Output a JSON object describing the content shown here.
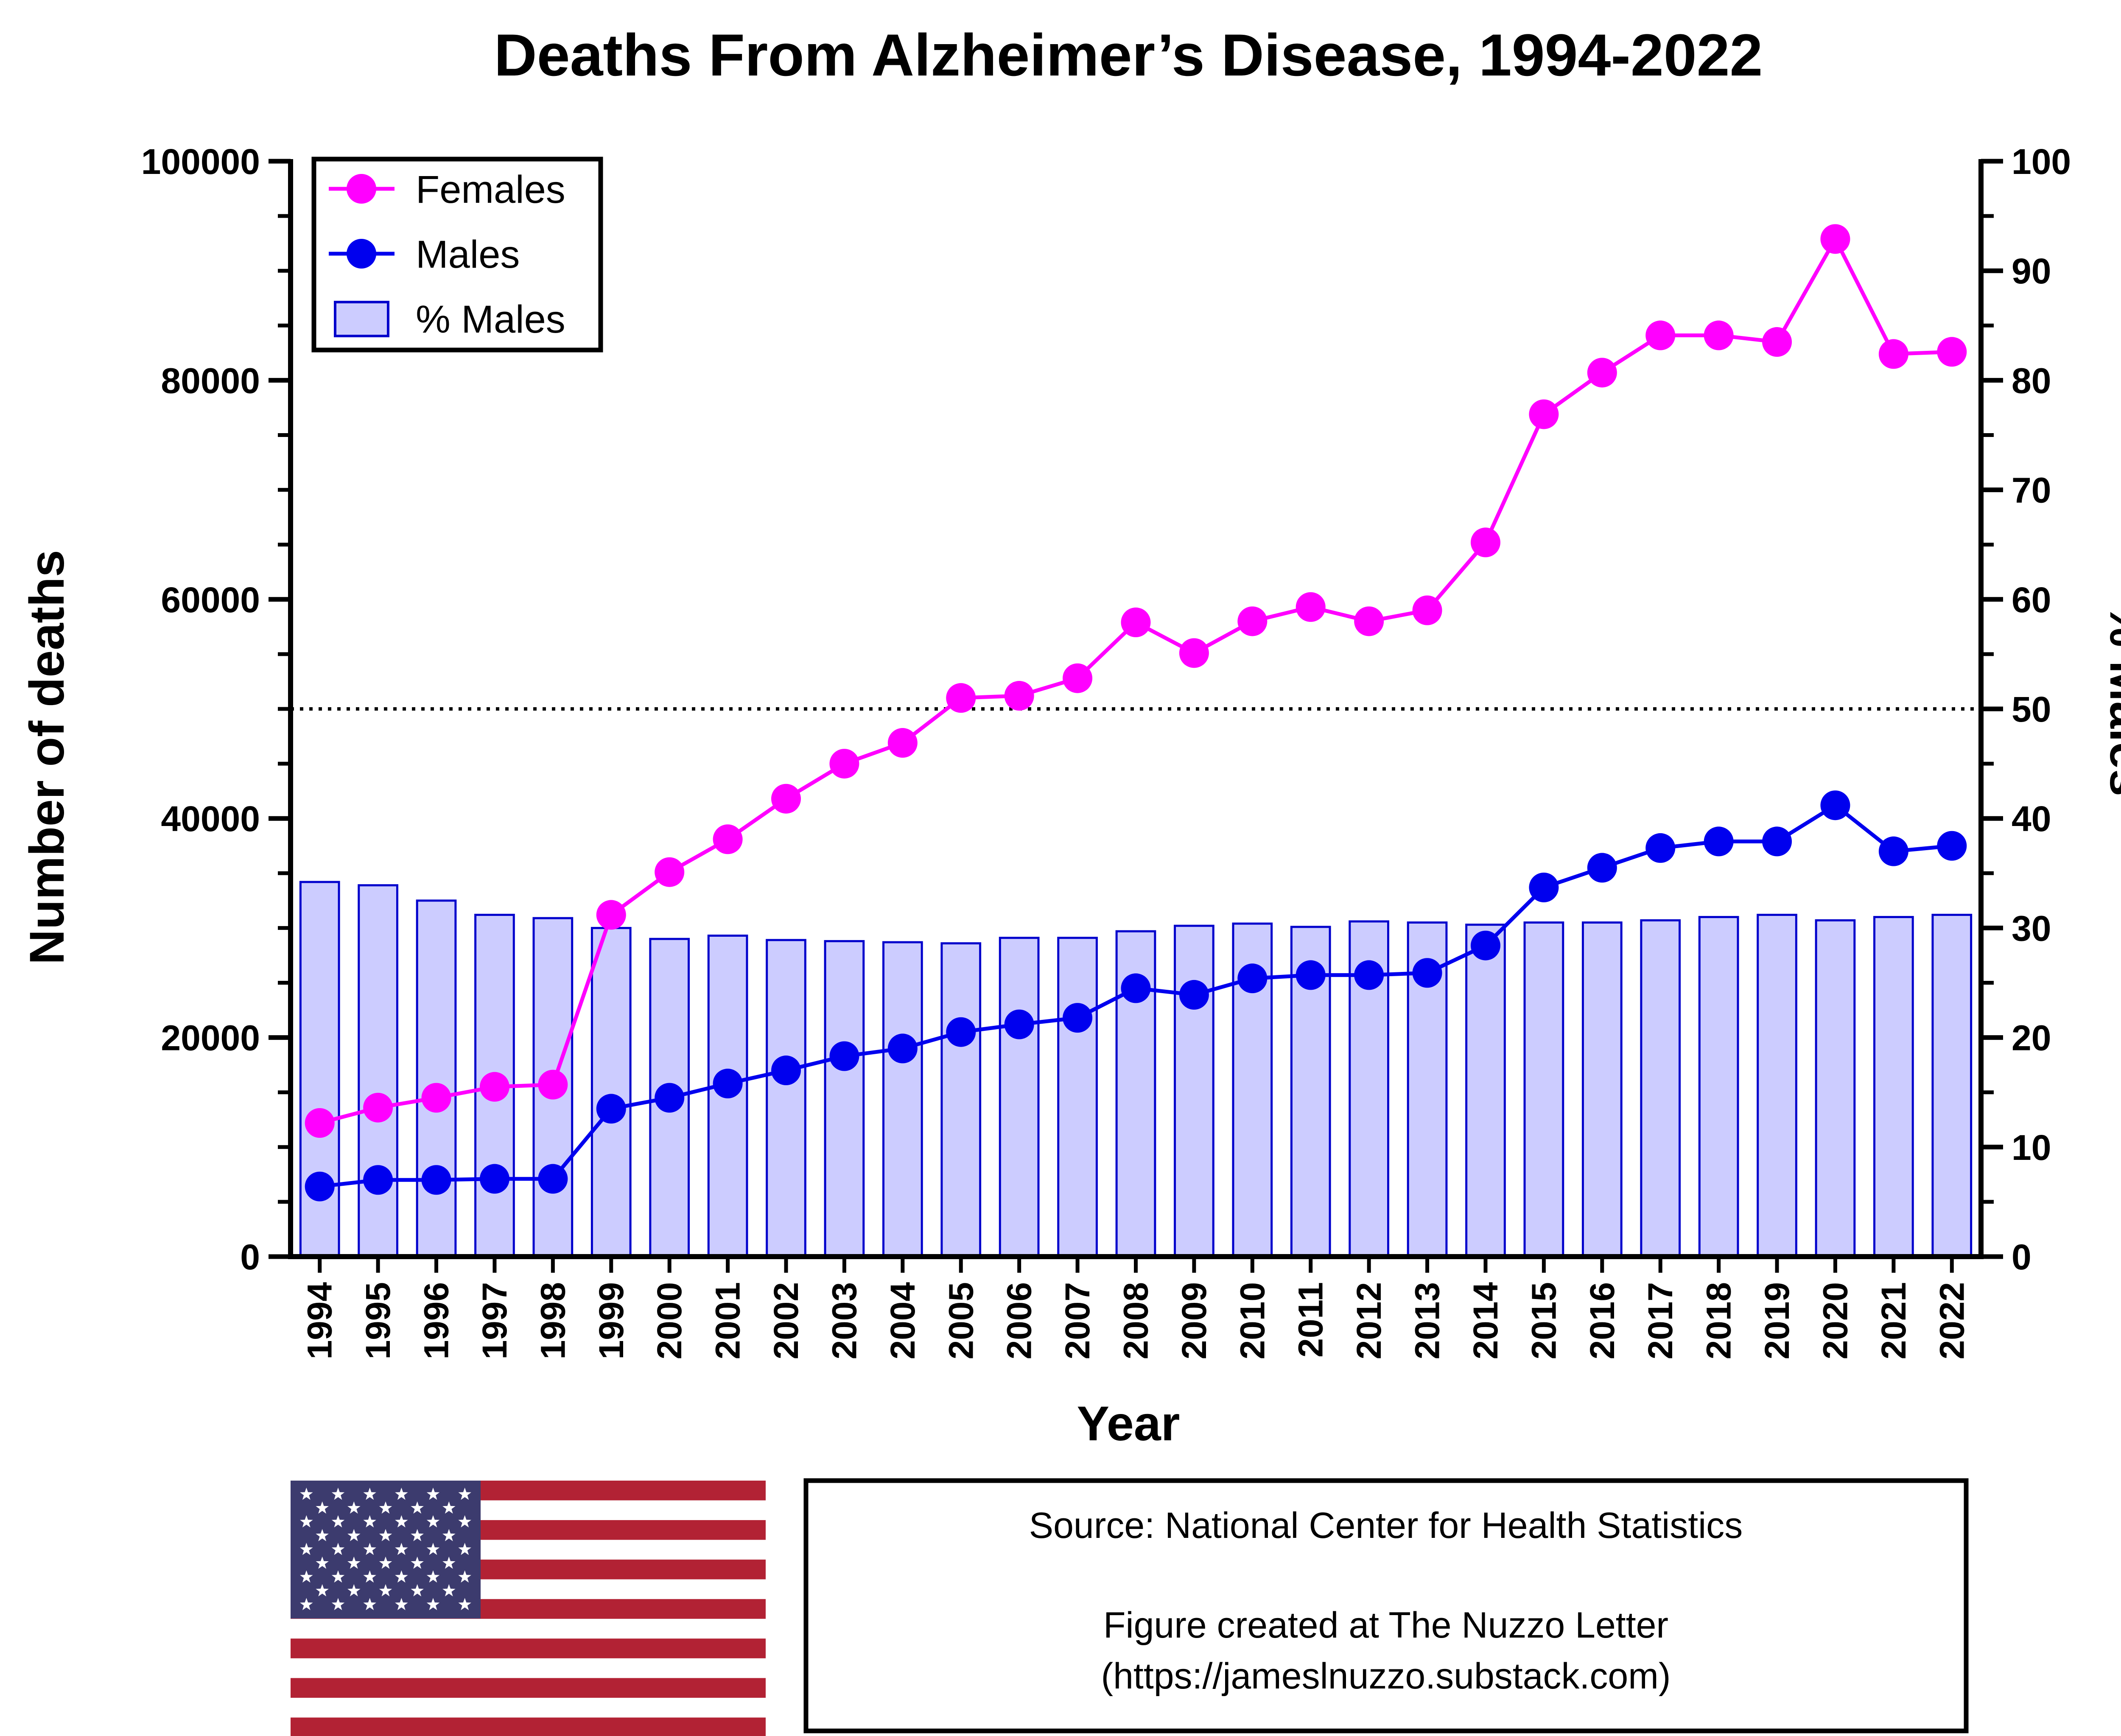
{
  "chart_data": {
    "type": "bar+line",
    "title": "Deaths From Alzheimer’s Disease, 1994-2022",
    "xlabel": "Year",
    "ylabel_left": "Number of deaths",
    "ylabel_right": "% Males",
    "ylim_left": [
      0,
      100000
    ],
    "ylim_right": [
      0,
      100
    ],
    "left_ticks": [
      "0",
      "20000",
      "40000",
      "60000",
      "80000",
      "100000"
    ],
    "right_ticks": [
      "0",
      "10",
      "20",
      "30",
      "40",
      "50",
      "60",
      "70",
      "80",
      "90",
      "100"
    ],
    "reference_line": {
      "axis": "right",
      "value": 50,
      "style": "dotted"
    },
    "categories": [
      "1994",
      "1995",
      "1996",
      "1997",
      "1998",
      "1999",
      "2000",
      "2001",
      "2002",
      "2003",
      "2004",
      "2005",
      "2006",
      "2007",
      "2008",
      "2009",
      "2010",
      "2011",
      "2012",
      "2013",
      "2014",
      "2015",
      "2016",
      "2017",
      "2018",
      "2019",
      "2020",
      "2021",
      "2022"
    ],
    "series": [
      {
        "name": "Females",
        "type": "line",
        "axis": "left",
        "color": "#ff00ff",
        "values": [
          12200,
          13600,
          14500,
          15500,
          15700,
          31200,
          35100,
          38100,
          41800,
          45000,
          46900,
          51000,
          51200,
          52800,
          57900,
          55100,
          58000,
          59300,
          58000,
          59000,
          65200,
          76900,
          80700,
          84100,
          84100,
          83500,
          92900,
          82400,
          82600
        ]
      },
      {
        "name": "Males",
        "type": "line",
        "axis": "left",
        "color": "#0000ee",
        "values": [
          6400,
          7000,
          7000,
          7100,
          7100,
          13500,
          14500,
          15800,
          17000,
          18300,
          19000,
          20500,
          21200,
          21800,
          24500,
          23900,
          25400,
          25700,
          25700,
          25900,
          28400,
          33700,
          35500,
          37300,
          37900,
          37900,
          41200,
          37000,
          37500
        ]
      },
      {
        "name": "% Males",
        "type": "bar",
        "axis": "right",
        "fill": "#ccccff",
        "stroke": "#0000cc",
        "values": [
          34.2,
          33.9,
          32.5,
          31.2,
          30.9,
          30.0,
          29.0,
          29.3,
          28.9,
          28.8,
          28.7,
          28.6,
          29.1,
          29.1,
          29.7,
          30.2,
          30.4,
          30.1,
          30.6,
          30.5,
          30.3,
          30.5,
          30.5,
          30.7,
          31.0,
          31.2,
          30.7,
          31.0,
          31.2
        ]
      }
    ],
    "legend": {
      "placement": "top-left",
      "entries": [
        "Females",
        "Males",
        "% Males"
      ]
    }
  },
  "source_box": {
    "line1": "Source: National Center for Health Statistics",
    "line2": "Figure created at The Nuzzo Letter",
    "line3": "(https://jameslnuzzo.substack.com)"
  },
  "flag": {
    "name": "us-flag",
    "colors": {
      "red": "#b22234",
      "white": "#ffffff",
      "blue": "#3c3b6e"
    }
  }
}
